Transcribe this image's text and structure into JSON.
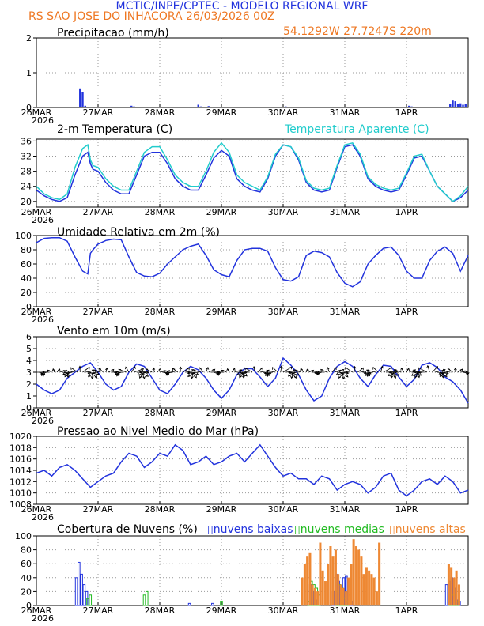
{
  "header": {
    "title": "MCTIC/INPE/CPTEC - MODELO REGIONAL WRF",
    "location_run": "RS SAO JOSE DO INHACORA   26/03/2026 00Z",
    "coords": "54.1292W 27.7247S 220m"
  },
  "x_axis": {
    "labels": [
      "26MAR",
      "27MAR",
      "28MAR",
      "29MAR",
      "30MAR",
      "31MAR",
      "1APR"
    ],
    "year": "2026",
    "hours": [
      0,
      24,
      48,
      72,
      96,
      120,
      144
    ],
    "range": [
      0,
      168
    ]
  },
  "colors": {
    "blue": "#2233dd",
    "cyan": "#22cccc",
    "green": "#22bb22",
    "orange": "#ee8833",
    "axis": "#000000",
    "grid": "#888888"
  },
  "chart_data": [
    {
      "id": "precip",
      "type": "bar",
      "title": "Precipitacao (mm/h)",
      "ylim": [
        0,
        2
      ],
      "yticks": [
        0,
        1,
        2
      ],
      "x_hours": [
        17,
        18,
        19,
        36,
        37,
        38,
        62,
        63,
        64,
        67,
        68,
        96,
        97,
        121,
        144,
        145,
        146,
        161,
        162,
        163,
        164,
        165,
        166,
        167
      ],
      "values": [
        0.55,
        0.45,
        0.05,
        0.02,
        0.05,
        0.03,
        0.02,
        0.08,
        0.03,
        0.04,
        0.02,
        0.02,
        0.03,
        0.02,
        0.02,
        0.05,
        0.03,
        0.1,
        0.2,
        0.18,
        0.1,
        0.12,
        0.08,
        0.1
      ],
      "color": "#2233dd"
    },
    {
      "id": "temp",
      "type": "line",
      "title": "2-m Temperatura (C)",
      "legend": "Temperatura Aparente (C)",
      "ylim": [
        18.5,
        36.5
      ],
      "yticks": [
        20,
        24,
        28,
        32,
        36
      ],
      "series": [
        {
          "name": "2-m Temperatura (C)",
          "color": "#2233dd",
          "x": [
            0,
            3,
            6,
            9,
            12,
            15,
            18,
            20,
            21,
            22,
            24,
            27,
            30,
            33,
            36,
            39,
            42,
            45,
            48,
            51,
            54,
            57,
            60,
            63,
            66,
            69,
            72,
            75,
            78,
            81,
            84,
            87,
            90,
            93,
            96,
            99,
            102,
            105,
            108,
            111,
            114,
            117,
            120,
            123,
            126,
            129,
            132,
            135,
            138,
            141,
            144,
            147,
            150,
            153,
            156,
            159,
            162,
            165,
            168
          ],
          "values": [
            23,
            21.5,
            20.5,
            20,
            21,
            27,
            32,
            33,
            30,
            28.5,
            28,
            25,
            23,
            22,
            22,
            27,
            32,
            33,
            33,
            30,
            26,
            24,
            23,
            23,
            27,
            31.5,
            33.5,
            32,
            26,
            24,
            23,
            22.5,
            26,
            32,
            35,
            34.5,
            31,
            25,
            23,
            22.5,
            23,
            29,
            34.5,
            35,
            32,
            26,
            24,
            23,
            22.5,
            23,
            27,
            31.5,
            32,
            28,
            24,
            22,
            20,
            21,
            23
          ]
        },
        {
          "name": "Temperatura Aparente (C)",
          "color": "#22cccc",
          "x": [
            0,
            3,
            6,
            9,
            12,
            15,
            18,
            20,
            21,
            22,
            24,
            27,
            30,
            33,
            36,
            39,
            42,
            45,
            48,
            51,
            54,
            57,
            60,
            63,
            66,
            69,
            72,
            75,
            78,
            81,
            84,
            87,
            90,
            93,
            96,
            99,
            102,
            105,
            108,
            111,
            114,
            117,
            120,
            123,
            126,
            129,
            132,
            135,
            138,
            141,
            144,
            147,
            150,
            153,
            156,
            159,
            162,
            165,
            168
          ],
          "values": [
            24,
            22,
            21,
            20.5,
            22,
            29,
            34,
            35,
            31,
            29.5,
            29,
            26,
            24,
            23,
            23,
            28,
            33,
            34.5,
            34.5,
            31,
            27,
            25,
            24,
            24,
            28,
            33,
            35.5,
            33,
            27,
            25,
            24,
            23,
            26.5,
            32.5,
            35,
            34.5,
            31.5,
            25.5,
            23.5,
            23,
            23.5,
            29.5,
            35,
            35.5,
            32.5,
            26.5,
            24.5,
            23.5,
            23,
            23.5,
            27.5,
            32,
            32.5,
            28,
            24,
            22,
            20,
            21.5,
            24
          ]
        }
      ]
    },
    {
      "id": "rh",
      "type": "line",
      "title": "Umidade Relativa em 2m (%)",
      "ylim": [
        0,
        100
      ],
      "yticks": [
        0,
        20,
        40,
        60,
        80,
        100
      ],
      "series": [
        {
          "name": "Umidade Relativa em 2m (%)",
          "color": "#2233dd",
          "x": [
            0,
            3,
            6,
            9,
            12,
            15,
            18,
            20,
            21,
            22,
            24,
            27,
            30,
            33,
            36,
            39,
            42,
            45,
            48,
            51,
            54,
            57,
            60,
            63,
            66,
            69,
            72,
            75,
            78,
            81,
            84,
            87,
            90,
            93,
            96,
            99,
            102,
            105,
            108,
            111,
            114,
            117,
            120,
            123,
            126,
            129,
            132,
            135,
            138,
            141,
            144,
            147,
            150,
            153,
            156,
            159,
            162,
            165,
            168
          ],
          "values": [
            90,
            96,
            97,
            97,
            92,
            70,
            50,
            46,
            75,
            80,
            88,
            93,
            95,
            94,
            70,
            48,
            43,
            42,
            47,
            60,
            70,
            80,
            85,
            88,
            72,
            52,
            45,
            42,
            65,
            80,
            82,
            82,
            78,
            55,
            38,
            36,
            42,
            72,
            78,
            76,
            70,
            48,
            33,
            28,
            35,
            60,
            72,
            82,
            84,
            72,
            50,
            40,
            40,
            65,
            78,
            84,
            75,
            50,
            72
          ]
        }
      ]
    },
    {
      "id": "wind",
      "type": "line",
      "title": "Vento em 10m (m/s)",
      "ylim": [
        0,
        6
      ],
      "yticks": [
        0,
        1,
        2,
        3,
        4,
        5,
        6
      ],
      "series": [
        {
          "name": "Vento em 10m (m/s)",
          "color": "#2233dd",
          "x": [
            0,
            3,
            6,
            9,
            12,
            15,
            18,
            21,
            24,
            27,
            30,
            33,
            36,
            39,
            42,
            45,
            48,
            51,
            54,
            57,
            60,
            63,
            66,
            69,
            72,
            75,
            78,
            81,
            84,
            87,
            90,
            93,
            96,
            99,
            102,
            105,
            108,
            111,
            114,
            117,
            120,
            123,
            126,
            129,
            132,
            135,
            138,
            141,
            144,
            147,
            150,
            153,
            156,
            159,
            162,
            165,
            168
          ],
          "values": [
            2,
            1.5,
            1.2,
            1.5,
            2.5,
            3,
            3.5,
            3.8,
            3,
            2,
            1.5,
            1.8,
            3,
            3.7,
            3.5,
            2.5,
            1.5,
            1.2,
            2,
            3,
            3.5,
            3.2,
            2.5,
            1.5,
            0.8,
            1.5,
            2.8,
            3.3,
            3.3,
            2.6,
            1.8,
            2.5,
            4.2,
            3.6,
            2.8,
            1.5,
            0.6,
            1,
            2.5,
            3.5,
            3.9,
            3.5,
            2.5,
            1.8,
            2.8,
            3.6,
            3.5,
            2.6,
            1.8,
            2.4,
            3.6,
            3.8,
            3.4,
            2.6,
            2.2,
            1.5,
            0.4
          ]
        }
      ],
      "arrows": {
        "x_step_hours": 1,
        "baseline_ms": 3,
        "note": "wind vectors plotted at hourly intervals"
      }
    },
    {
      "id": "mslp",
      "type": "line",
      "title": "Pressao ao Nivel Medio do Mar (hPa)",
      "ylim": [
        1008,
        1020
      ],
      "yticks": [
        1008,
        1010,
        1012,
        1014,
        1016,
        1018,
        1020
      ],
      "series": [
        {
          "name": "Pressao ao Nivel Medio do Mar (hPa)",
          "color": "#2233dd",
          "x": [
            0,
            3,
            6,
            9,
            12,
            15,
            18,
            21,
            24,
            27,
            30,
            33,
            36,
            39,
            42,
            45,
            48,
            51,
            54,
            57,
            60,
            63,
            66,
            69,
            72,
            75,
            78,
            81,
            84,
            87,
            90,
            93,
            96,
            99,
            102,
            105,
            108,
            111,
            114,
            117,
            120,
            123,
            126,
            129,
            132,
            135,
            138,
            141,
            144,
            147,
            150,
            153,
            156,
            159,
            162,
            165,
            168
          ],
          "values": [
            1013.5,
            1014,
            1013,
            1014.5,
            1015,
            1014,
            1012.5,
            1011,
            1012,
            1013,
            1013.5,
            1015.5,
            1017,
            1016.5,
            1014.5,
            1015.5,
            1017,
            1016.5,
            1018.5,
            1017.5,
            1015,
            1015.5,
            1016.5,
            1015,
            1015.5,
            1016.5,
            1017,
            1015.5,
            1017,
            1018.5,
            1016.5,
            1014.5,
            1013,
            1013.5,
            1012.5,
            1012.5,
            1011.5,
            1013,
            1012.5,
            1010.5,
            1011.5,
            1012,
            1011.5,
            1010,
            1011,
            1013,
            1013.5,
            1010.5,
            1009.5,
            1010.5,
            1012,
            1012.5,
            1011.5,
            1013,
            1012,
            1010,
            1010.5
          ]
        }
      ]
    },
    {
      "id": "clouds",
      "type": "bar",
      "title": "Cobertura de Nuvens (%)",
      "ylim": [
        0,
        100
      ],
      "yticks": [
        0,
        20,
        40,
        60,
        80,
        100
      ],
      "series": [
        {
          "name": "nuvens baixas",
          "color": "#2233dd",
          "x_hours": [
            16,
            17,
            18,
            19,
            20,
            60,
            69,
            107,
            108,
            109,
            116,
            117,
            118,
            119,
            120,
            121,
            122,
            123,
            160,
            161,
            162,
            163,
            164,
            165
          ],
          "values": [
            40,
            62,
            45,
            30,
            20,
            3,
            3,
            30,
            20,
            8,
            20,
            45,
            35,
            8,
            40,
            42,
            15,
            5,
            30,
            35,
            40,
            25,
            8,
            5
          ]
        },
        {
          "name": "nuvens medias",
          "color": "#22bb22",
          "x_hours": [
            20,
            21,
            42,
            43,
            72,
            106,
            107,
            108,
            109,
            110,
            117,
            118,
            119,
            120,
            121,
            161,
            162,
            163,
            164
          ],
          "values": [
            10,
            15,
            15,
            20,
            5,
            5,
            35,
            30,
            25,
            15,
            20,
            30,
            25,
            10,
            5,
            5,
            15,
            15,
            5
          ]
        },
        {
          "name": "nuvens altas",
          "color": "#ee8833",
          "x_hours": [
            103,
            104,
            105,
            106,
            107,
            108,
            109,
            110,
            111,
            112,
            113,
            114,
            115,
            116,
            117,
            118,
            119,
            120,
            121,
            122,
            123,
            124,
            125,
            126,
            127,
            128,
            129,
            130,
            131,
            132,
            133,
            160,
            161,
            162,
            163,
            164
          ],
          "values": [
            40,
            60,
            70,
            75,
            30,
            25,
            20,
            90,
            50,
            35,
            60,
            85,
            70,
            80,
            45,
            30,
            25,
            20,
            40,
            60,
            95,
            85,
            80,
            70,
            45,
            55,
            50,
            45,
            40,
            20,
            90,
            60,
            55,
            40,
            50,
            30
          ]
        }
      ]
    }
  ]
}
